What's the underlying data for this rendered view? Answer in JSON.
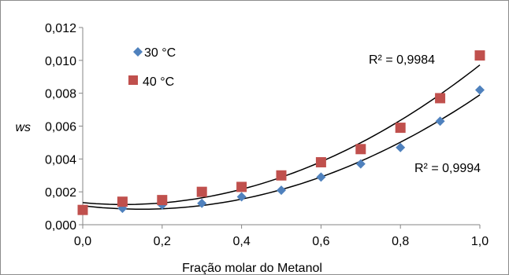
{
  "chart_data": {
    "type": "scatter",
    "title": "",
    "xlabel": "Fração molar do Metanol",
    "ylabel": "ws",
    "xlim": [
      0,
      1.0
    ],
    "ylim": [
      0,
      0.012
    ],
    "x_ticks": [
      "0,0",
      "0,2",
      "0,4",
      "0,6",
      "0,8",
      "1,0"
    ],
    "y_ticks": [
      "0,000",
      "0,002",
      "0,004",
      "0,006",
      "0,008",
      "0,010",
      "0,012"
    ],
    "grid": false,
    "legend_position": "top-left",
    "x": [
      0.0,
      0.1,
      0.2,
      0.3,
      0.4,
      0.5,
      0.6,
      0.7,
      0.8,
      0.9,
      1.0
    ],
    "series": [
      {
        "name": "30 °C",
        "marker": "diamond",
        "color": "#4F81BD",
        "values": [
          0.0009,
          0.001,
          0.0012,
          0.0013,
          0.0017,
          0.0021,
          0.0029,
          0.0037,
          0.0047,
          0.0063,
          0.0082
        ],
        "trendline": "polynomial",
        "r2_label": "R² = 0,9994"
      },
      {
        "name": "40 °C",
        "marker": "square",
        "color": "#C0504D",
        "values": [
          0.0009,
          0.0014,
          0.0015,
          0.002,
          0.0023,
          0.003,
          0.0038,
          0.0046,
          0.0059,
          0.0077,
          0.0103
        ],
        "trendline": "polynomial",
        "r2_label": "R² = 0,9984"
      }
    ]
  }
}
